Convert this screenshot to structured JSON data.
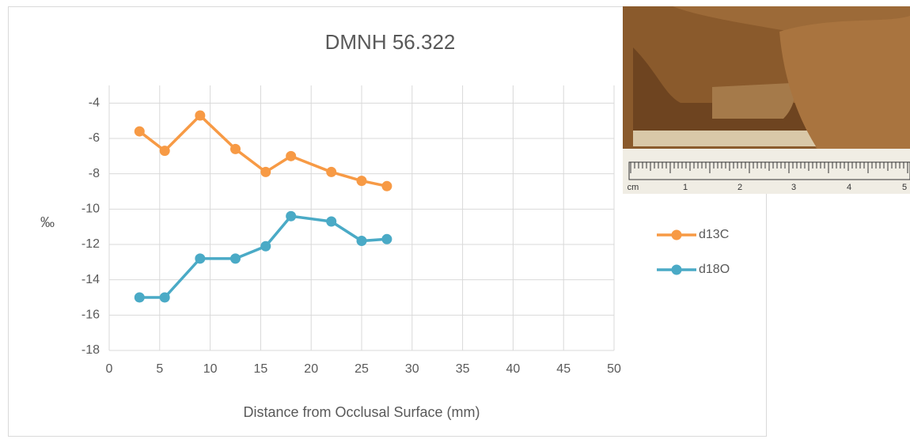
{
  "chart_data": {
    "type": "line",
    "title": "DMNH 56.322",
    "x_label": "Distance from Occlusal Surface (mm)",
    "y_label": "‰",
    "xlim": [
      0,
      50
    ],
    "xticks": [
      0,
      5,
      10,
      15,
      20,
      25,
      30,
      35,
      40,
      45,
      50
    ],
    "ylim": [
      -18,
      -3
    ],
    "yticks": [
      -18,
      -16,
      -14,
      -12,
      -10,
      -8,
      -6,
      -4
    ],
    "grid": true,
    "legend": "right",
    "series": [
      {
        "name": "d13C",
        "color": "#f79a45",
        "x": [
          3,
          5.5,
          9,
          12.5,
          15.5,
          18,
          22,
          25,
          27.5
        ],
        "values": [
          -5.6,
          -6.7,
          -4.7,
          -6.6,
          -7.9,
          -7,
          -7.9,
          -8.4,
          -8.7
        ]
      },
      {
        "name": "d18O",
        "color": "#4aaac6",
        "x": [
          3,
          5.5,
          9,
          12.5,
          15.5,
          18,
          22,
          25,
          27.5
        ],
        "values": [
          -15,
          -15,
          -12.8,
          -12.8,
          -12.1,
          -10.4,
          -10.7,
          -11.8,
          -11.7
        ]
      }
    ]
  },
  "inset_photo": {
    "ruler_labels": [
      "cm",
      "1",
      "2",
      "3",
      "4",
      "5"
    ]
  }
}
